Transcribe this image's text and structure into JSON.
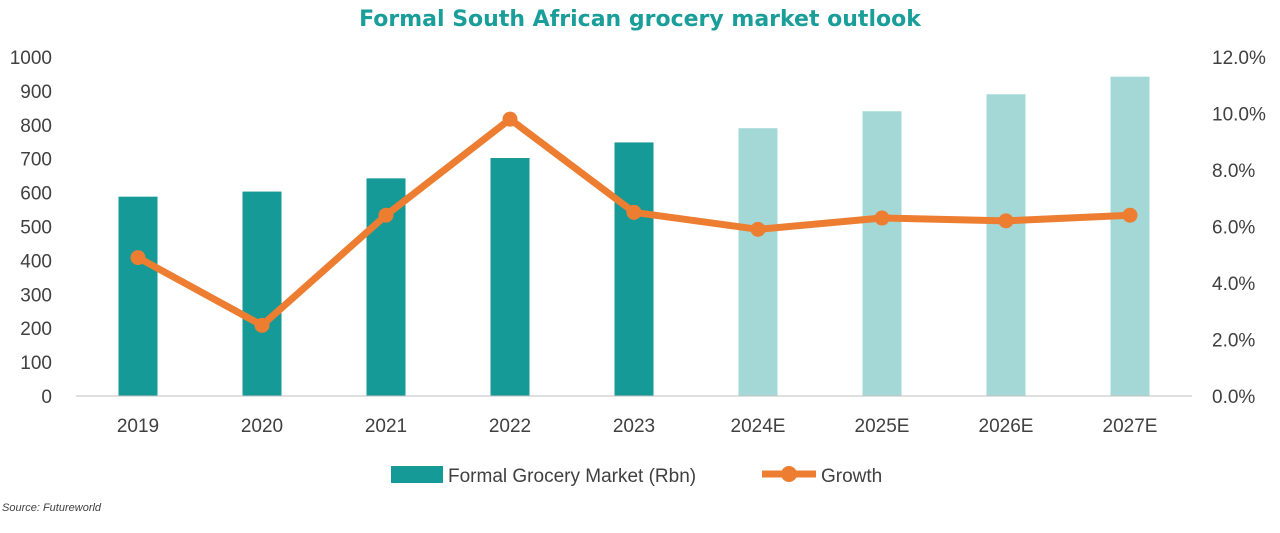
{
  "chart_data": {
    "type": "bar",
    "title": "Formal South African grocery market outlook",
    "categories": [
      "2019",
      "2020",
      "2021",
      "2022",
      "2023",
      "2024E",
      "2025E",
      "2026E",
      "2027E"
    ],
    "series": [
      {
        "name": "Formal Grocery Market (Rbn)",
        "type": "bar",
        "axis": "left",
        "values": [
          588,
          603,
          642,
          702,
          748,
          790,
          840,
          890,
          942
        ],
        "colors": [
          "#159a97",
          "#159a97",
          "#159a97",
          "#159a97",
          "#159a97",
          "#a4d8d7",
          "#a4d8d7",
          "#a4d8d7",
          "#a4d8d7"
        ]
      },
      {
        "name": "Growth",
        "type": "line",
        "axis": "right",
        "values": [
          4.9,
          2.5,
          6.4,
          9.8,
          6.5,
          5.9,
          6.3,
          6.2,
          6.4
        ],
        "color": "#ed7d31"
      }
    ],
    "y_left": {
      "range": [
        0,
        1000
      ],
      "ticks": [
        "0",
        "100",
        "200",
        "300",
        "400",
        "500",
        "600",
        "700",
        "800",
        "900",
        "1000"
      ]
    },
    "y_right": {
      "range": [
        0,
        12
      ],
      "ticks": [
        "0.0%",
        "2.0%",
        "4.0%",
        "6.0%",
        "8.0%",
        "10.0%",
        "12.0%"
      ]
    },
    "grid": false,
    "legend_position": "bottom",
    "source": "Source: Futureworld"
  }
}
